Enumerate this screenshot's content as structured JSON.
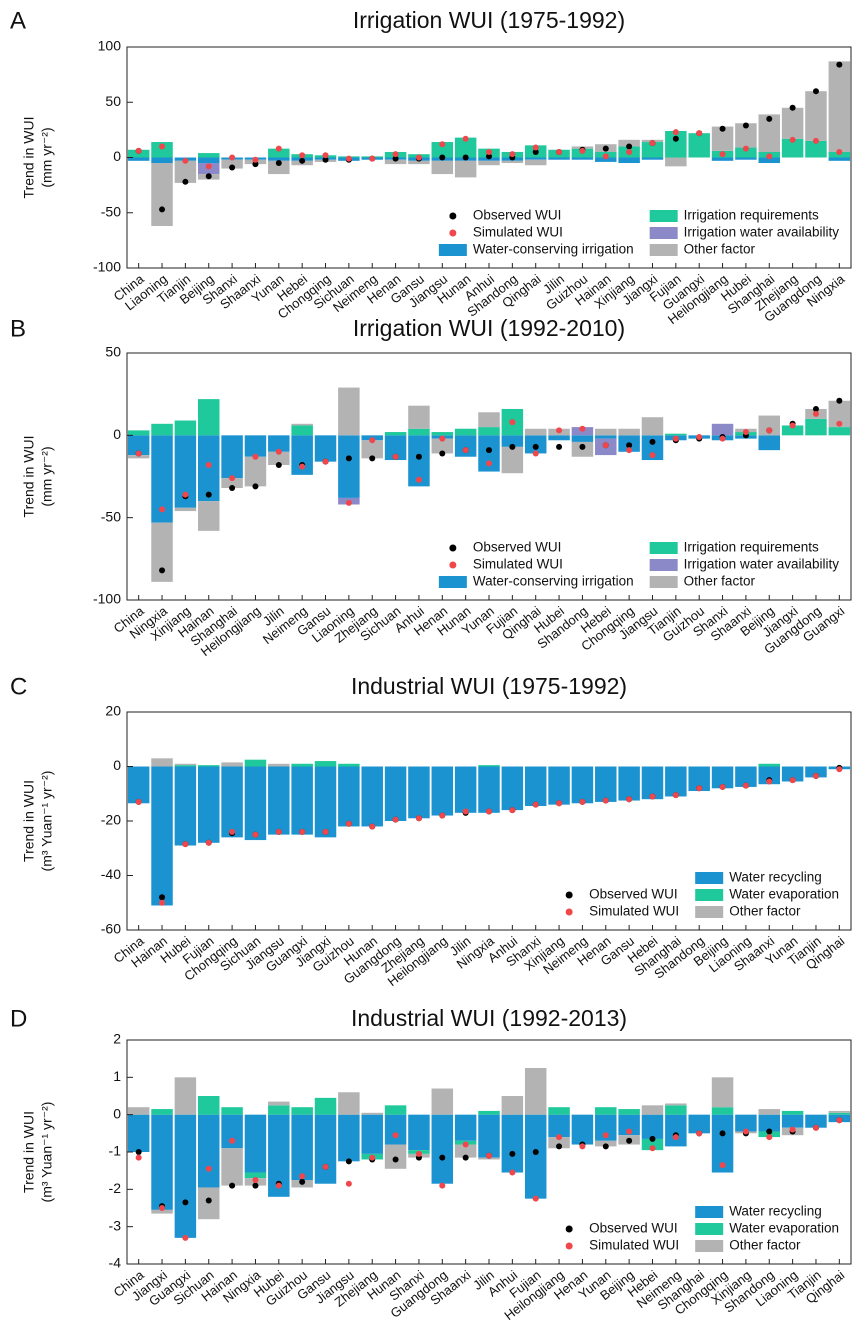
{
  "chart_data": [
    {
      "type": "bar",
      "panel": "A",
      "title": "Irrigation WUI (1975-1992)",
      "ylabel": [
        "Trend in WUI",
        "(mm yr⁻²)"
      ],
      "categories": [
        "China",
        "Liaoning",
        "Tianjin",
        "Beijing",
        "Shanxi",
        "Shaanxi",
        "Yunan",
        "Hebei",
        "Chongqing",
        "Sichuan",
        "Neimeng",
        "Henan",
        "Gansu",
        "Jiangsu",
        "Hunan",
        "Anhui",
        "Shandong",
        "Qinghai",
        "Jilin",
        "Guizhou",
        "Hainan",
        "Xinjiang",
        "Jiangxi",
        "Fujian",
        "Guangxi",
        "Heilongjiang",
        "Hubei",
        "Shanghai",
        "Zhejiang",
        "Guangdong",
        "Ningxia"
      ],
      "series": [
        {
          "name": "Observed WUI",
          "type": "scatter",
          "color": "#000000",
          "values": [
            6,
            -47,
            -22,
            -17,
            -9,
            -6,
            -5,
            -3,
            -2,
            -2,
            -1,
            -1,
            -1,
            0,
            0,
            1,
            0,
            5,
            5,
            7,
            8,
            10,
            13,
            17,
            22,
            26,
            29,
            35,
            45,
            60,
            84
          ]
        },
        {
          "name": "Simulated WUI",
          "type": "scatter",
          "color": "#f0474c",
          "values": [
            6,
            10,
            -3,
            -8,
            0,
            -2,
            8,
            2,
            2,
            -1,
            -1,
            3,
            0,
            12,
            17,
            5,
            3,
            9,
            5,
            6,
            1,
            5,
            13,
            23,
            22,
            3,
            8,
            1,
            16,
            15,
            5
          ]
        },
        {
          "name": "Water-conserving irrigation",
          "type": "bar",
          "color": "#1b93d0",
          "values": [
            -3,
            -5,
            -3,
            -5,
            -2,
            -2,
            -3,
            -3,
            -2,
            -3,
            -2,
            -2,
            -3,
            -3,
            -3,
            -3,
            -3,
            -2,
            -2,
            -2,
            -4,
            -5,
            -2,
            0,
            0,
            -3,
            -2,
            -5,
            0,
            0,
            -3
          ]
        },
        {
          "name": "Irrigation requirements",
          "type": "bar",
          "color": "#20c99b",
          "values": [
            7,
            14,
            0,
            4,
            0,
            0,
            8,
            3,
            2,
            1,
            1,
            5,
            3,
            14,
            18,
            8,
            5,
            11,
            7,
            8,
            5,
            10,
            14,
            24,
            22,
            6,
            9,
            5,
            17,
            15,
            5
          ]
        },
        {
          "name": "Irrigation water availability",
          "type": "bar",
          "color": "#8c89c9",
          "values": [
            0,
            0,
            0,
            -10,
            0,
            0,
            0,
            0,
            0,
            0,
            0,
            0,
            0,
            0,
            0,
            0,
            0,
            0,
            0,
            0,
            0,
            0,
            0,
            0,
            0,
            0,
            0,
            0,
            0,
            0,
            0
          ]
        },
        {
          "name": "Other factor",
          "type": "bar",
          "color": "#b3b3b3",
          "values": [
            0,
            -57,
            -20,
            -5,
            -8,
            -4,
            -12,
            -4,
            -2,
            0,
            0,
            -4,
            -3,
            -12,
            -15,
            -4,
            -2,
            -5,
            0,
            2,
            7,
            6,
            2,
            -8,
            0,
            22,
            22,
            34,
            28,
            45,
            82
          ]
        }
      ],
      "ylim": [
        -100,
        100
      ],
      "yticks": [
        -100,
        -50,
        0,
        50,
        100
      ],
      "legend": "lower right"
    },
    {
      "type": "bar",
      "panel": "B",
      "title": "Irrigation WUI (1992-2010)",
      "ylabel": [
        "Trend in WUI",
        "(mm yr⁻²)"
      ],
      "categories": [
        "China",
        "Ningxia",
        "Xinjiang",
        "Hainan",
        "Shanghai",
        "Heilongjiang",
        "Jilin",
        "Neimeng",
        "Gansu",
        "Liaoning",
        "Zhejiang",
        "Sichuan",
        "Anhui",
        "Henan",
        "Hunan",
        "Yunan",
        "Fujian",
        "Qinghai",
        "Hubei",
        "Shandong",
        "Hebei",
        "Chongqing",
        "Jiangsu",
        "Tianjin",
        "Guizhou",
        "Shanxi",
        "Shaanxi",
        "Beijing",
        "Jiangxi",
        "Guangdong",
        "Guangxi"
      ],
      "series": [
        {
          "name": "Observed WUI",
          "type": "scatter",
          "color": "#000000",
          "values": [
            -11,
            -82,
            -37,
            -36,
            -32,
            -31,
            -18,
            -18,
            -16,
            -14,
            -14,
            -13,
            -13,
            -11,
            -9,
            -9,
            -7,
            -7,
            -7,
            -7,
            -6,
            -6,
            -4,
            -3,
            -2,
            -1,
            0,
            3,
            7,
            16,
            21
          ]
        },
        {
          "name": "Simulated WUI",
          "type": "scatter",
          "color": "#f0474c",
          "values": [
            -11,
            -45,
            -36,
            -18,
            -26,
            -13,
            -10,
            -19,
            -16,
            -41,
            -3,
            -13,
            -27,
            -2,
            -9,
            -17,
            8,
            -11,
            3,
            4,
            -6,
            -9,
            -12,
            -2,
            -1,
            -2,
            2,
            3,
            6,
            13,
            7
          ]
        },
        {
          "name": "Water-conserving irrigation",
          "type": "bar",
          "color": "#1b93d0",
          "values": [
            -12,
            -53,
            -44,
            -40,
            -26,
            -13,
            -10,
            -24,
            -16,
            -38,
            -3,
            -15,
            -31,
            -2,
            -13,
            -22,
            -7,
            -11,
            -3,
            -4,
            -2,
            -10,
            -15,
            -3,
            -2,
            -3,
            -2,
            -9,
            0,
            0,
            0
          ]
        },
        {
          "name": "Irrigation requirements",
          "type": "bar",
          "color": "#20c99b",
          "values": [
            3,
            7,
            9,
            22,
            0,
            0,
            0,
            6,
            0,
            0,
            0,
            2,
            4,
            2,
            4,
            5,
            16,
            0,
            0,
            0,
            0,
            0,
            0,
            1,
            0,
            0,
            2,
            0,
            6,
            10,
            5
          ]
        },
        {
          "name": "Irrigation water availability",
          "type": "bar",
          "color": "#8c89c9",
          "values": [
            0,
            0,
            0,
            0,
            0,
            0,
            0,
            0,
            0,
            -4,
            0,
            0,
            0,
            0,
            0,
            0,
            0,
            0,
            0,
            5,
            -10,
            0,
            0,
            0,
            0,
            7,
            0,
            0,
            0,
            0,
            0
          ]
        },
        {
          "name": "Other factor",
          "type": "bar",
          "color": "#b3b3b3",
          "values": [
            -2,
            -36,
            -2,
            -18,
            -6,
            -18,
            -8,
            1,
            0,
            29,
            -11,
            0,
            14,
            -9,
            0,
            9,
            -16,
            4,
            4,
            -9,
            4,
            4,
            11,
            0,
            0,
            0,
            2,
            12,
            0,
            6,
            16
          ]
        }
      ],
      "ylim": [
        -100,
        50
      ],
      "yticks": [
        -100,
        -50,
        0,
        50
      ],
      "legend": "lower right"
    },
    {
      "type": "bar",
      "panel": "C",
      "title": "Industrial WUI (1975-1992)",
      "ylabel": [
        "Trend in WUI",
        "(m³ Yuan⁻¹ yr⁻²)"
      ],
      "categories": [
        "China",
        "Hainan",
        "Hubei",
        "Fujian",
        "Chongqing",
        "Sichuan",
        "Jiangsu",
        "Guangxi",
        "Jiangxi",
        "Guizhou",
        "Hunan",
        "Guangdong",
        "Zhejiang",
        "Heilongjiang",
        "Jilin",
        "Ningxia",
        "Anhui",
        "Shanxi",
        "Xinjiang",
        "Neimeng",
        "Henan",
        "Gansu",
        "Hebei",
        "Shanghai",
        "Shandong",
        "Beijing",
        "Liaoning",
        "Shaanxi",
        "Yunan",
        "Tianjin",
        "Qinghai"
      ],
      "series": [
        {
          "name": "Observed WUI",
          "type": "scatter",
          "color": "#000000",
          "values": [
            -13,
            -48,
            -28.5,
            -28,
            -24.5,
            -25,
            -24,
            -24,
            -24,
            -21,
            -22,
            -19.5,
            -19,
            -18,
            -17,
            -16.5,
            -16,
            -14,
            -13.5,
            -13,
            -12.5,
            -12,
            -11,
            -10.5,
            -8,
            -7.5,
            -7,
            -5,
            -5,
            -3.5,
            -0.5
          ]
        },
        {
          "name": "Simulated WUI",
          "type": "scatter",
          "color": "#f0474c",
          "values": [
            -13,
            -50,
            -28.5,
            -28,
            -24,
            -25,
            -24,
            -24,
            -24,
            -21,
            -22,
            -19.5,
            -19,
            -18,
            -16.5,
            -16.5,
            -16,
            -14,
            -13.5,
            -13,
            -12.5,
            -12,
            -11,
            -10.5,
            -8,
            -7.5,
            -7,
            -5.5,
            -5,
            -3.5,
            -1
          ]
        },
        {
          "name": "Water recycling",
          "type": "bar",
          "color": "#1b93d0",
          "values": [
            -13.5,
            -51,
            -29,
            -28,
            -26,
            -27,
            -25,
            -25,
            -26,
            -22,
            -22,
            -20,
            -19,
            -18,
            -17,
            -17,
            -16,
            -14.5,
            -14,
            -13.5,
            -13,
            -12.5,
            -12,
            -11,
            -9,
            -8,
            -7.5,
            -6.5,
            -5.5,
            -4,
            -1
          ]
        },
        {
          "name": "Water evaporation",
          "type": "bar",
          "color": "#20c99b",
          "values": [
            0,
            0,
            0.5,
            0.5,
            0,
            2.5,
            0,
            1,
            2,
            1,
            0,
            0,
            0,
            0,
            0,
            0.5,
            0,
            0,
            0,
            0,
            0,
            0,
            0,
            0,
            0,
            0,
            0,
            1,
            0,
            0,
            0
          ]
        },
        {
          "name": "Other factor",
          "type": "bar",
          "color": "#b3b3b3",
          "values": [
            0,
            3,
            0.5,
            0,
            1.5,
            0,
            1,
            0,
            0,
            0,
            0,
            0,
            0,
            0,
            0,
            0,
            0,
            0,
            0,
            0,
            0,
            0,
            0,
            0,
            0,
            0,
            0,
            0,
            0,
            0,
            0
          ]
        }
      ],
      "ylim": [
        -60,
        20
      ],
      "yticks": [
        -60,
        -40,
        -20,
        0,
        20
      ],
      "legend": "lower right"
    },
    {
      "type": "bar",
      "panel": "D",
      "title": "Industrial WUI (1992-2013)",
      "ylabel": [
        "Trend in WUI",
        "(m³ Yuan⁻¹ yr⁻²)"
      ],
      "categories": [
        "China",
        "Jiangxi",
        "Guangxi",
        "Sichuan",
        "Hainan",
        "Ningxia",
        "Hubei",
        "Guizhou",
        "Gansu",
        "Jiangsu",
        "Zhejiang",
        "Hunan",
        "Shanxi",
        "Guangdong",
        "Shaanxi",
        "Jilin",
        "Anhui",
        "Fujian",
        "Heilongjiang",
        "Henan",
        "Yunan",
        "Beijing",
        "Hebei",
        "Neimeng",
        "Shanghai",
        "Chongqing",
        "Xinjiang",
        "Shandong",
        "Liaoning",
        "Tianjin",
        "Qinghai"
      ],
      "series": [
        {
          "name": "Observed WUI",
          "type": "scatter",
          "color": "#000000",
          "values": [
            -1.0,
            -2.45,
            -2.35,
            -2.3,
            -1.9,
            -1.9,
            -1.85,
            -1.8,
            -1.4,
            -1.25,
            -1.2,
            -1.2,
            -1.15,
            -1.15,
            -1.15,
            -1.1,
            -1.05,
            -1.0,
            -0.85,
            -0.8,
            -0.85,
            -0.7,
            -0.65,
            -0.55,
            -0.5,
            -0.5,
            -0.5,
            -0.45,
            -0.45,
            -0.35,
            -0.15
          ]
        },
        {
          "name": "Simulated WUI",
          "type": "scatter",
          "color": "#f0474c",
          "values": [
            -1.15,
            -2.5,
            -3.3,
            -1.45,
            -0.7,
            -1.75,
            -1.9,
            -1.65,
            -1.4,
            -1.85,
            -1.15,
            -0.55,
            -1.05,
            -1.9,
            -0.8,
            -1.1,
            -1.55,
            -2.25,
            -0.6,
            -0.85,
            -0.55,
            -0.45,
            -0.9,
            -0.6,
            -0.5,
            -1.35,
            -0.45,
            -0.6,
            -0.4,
            -0.35,
            -0.15
          ]
        },
        {
          "name": "Water recycling",
          "type": "bar",
          "color": "#1b93d0",
          "values": [
            -1.0,
            -2.55,
            -3.3,
            -1.95,
            -0.9,
            -1.55,
            -2.2,
            -1.75,
            -1.85,
            -1.25,
            -1.05,
            -0.8,
            -0.95,
            -1.85,
            -0.7,
            -1.15,
            -1.55,
            -2.25,
            -0.6,
            -0.8,
            -0.7,
            -0.55,
            -0.65,
            -0.85,
            -0.5,
            -1.55,
            -0.45,
            -0.45,
            -0.35,
            -0.35,
            -0.2
          ]
        },
        {
          "name": "Water evaporation",
          "type": "bar",
          "color": "#20c99b",
          "values": [
            0,
            0.15,
            0,
            0.5,
            0.2,
            -0.15,
            0.25,
            0.2,
            0.45,
            0,
            -0.15,
            0.25,
            -0.1,
            0,
            -0.1,
            0.1,
            0,
            0,
            0.2,
            0,
            0.2,
            0.15,
            -0.3,
            0.25,
            0,
            0.2,
            0,
            -0.15,
            0.1,
            0,
            0.05
          ]
        },
        {
          "name": "Other factor",
          "type": "bar",
          "color": "#b3b3b3",
          "values": [
            0.2,
            -0.1,
            1.0,
            -0.85,
            -1.0,
            -0.2,
            0.1,
            -0.2,
            0,
            0.6,
            0.05,
            -0.65,
            -0.1,
            0.7,
            -0.35,
            -0.05,
            0.5,
            1.25,
            -0.3,
            0,
            -0.15,
            -0.25,
            0.25,
            0.05,
            0,
            0.8,
            -0.05,
            0.15,
            -0.2,
            0,
            0.05
          ]
        }
      ],
      "ylim": [
        -4,
        2
      ],
      "yticks": [
        -4,
        -3,
        -2,
        -1,
        0,
        1,
        2
      ],
      "legend": "lower right"
    }
  ]
}
